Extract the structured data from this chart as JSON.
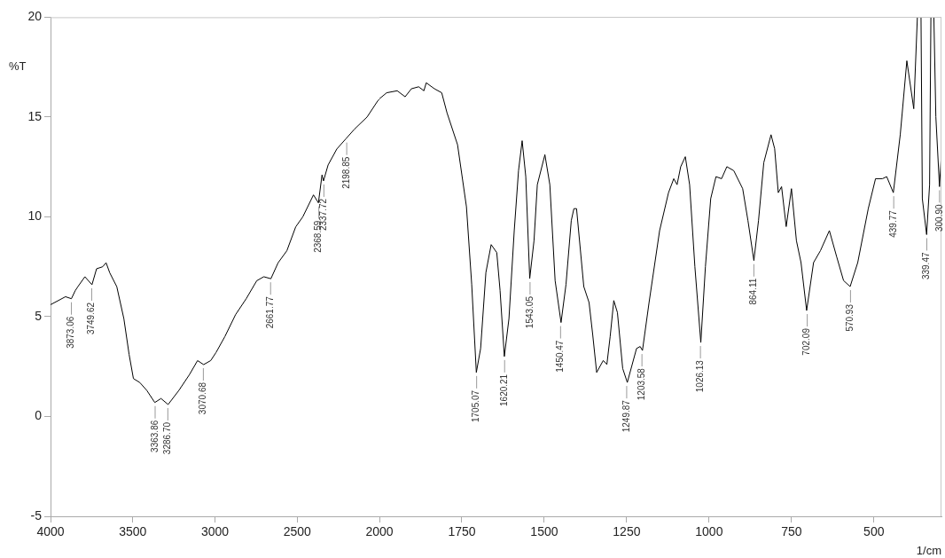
{
  "chart_data": [
    {
      "type": "line",
      "ylabel": "%T",
      "x": [
        4000,
        3909,
        3873,
        3850,
        3834,
        3791,
        3748,
        3720,
        3683,
        3662,
        3640,
        3597,
        3554,
        3522,
        3496,
        3457,
        3414,
        3366,
        3328,
        3285,
        3220,
        3155,
        3106,
        3069,
        3026,
        2994,
        2940,
        2875,
        2810,
        2746,
        2703,
        2660,
        2616,
        2563,
        2509,
        2466,
        2401,
        2371,
        2349,
        2340,
        2312,
        2259,
        2205,
        2151,
        2075,
        2011,
        2000
      ],
      "values": [
        5.6,
        6.0,
        5.9,
        6.3,
        6.5,
        7.0,
        6.6,
        7.4,
        7.5,
        7.7,
        7.2,
        6.5,
        4.9,
        3.1,
        1.9,
        1.7,
        1.3,
        0.7,
        0.9,
        0.6,
        1.3,
        2.1,
        2.8,
        2.6,
        2.8,
        3.2,
        4.0,
        5.1,
        5.9,
        6.8,
        7.0,
        6.9,
        7.7,
        8.3,
        9.5,
        10.0,
        11.1,
        10.7,
        12.1,
        11.8,
        12.6,
        13.4,
        13.9,
        14.4,
        15.0,
        15.8,
        15.9
      ],
      "color": "#000000",
      "marker": "none",
      "line_style": "solid",
      "grid": false,
      "legend": false,
      "xlim": [
        4000,
        2000
      ],
      "xticks": [
        4000,
        3500,
        3000,
        2500
      ],
      "ylim": [
        -5,
        20
      ],
      "yticks": [
        -5,
        0,
        5,
        10,
        15,
        20
      ],
      "annotations": [
        {
          "text": "3873.06",
          "x": 3873.06,
          "y": 5.9
        },
        {
          "text": "3749.62",
          "x": 3749.62,
          "y": 6.6
        },
        {
          "text": "3363.86",
          "x": 3363.86,
          "y": 0.7
        },
        {
          "text": "3286.70",
          "x": 3286.7,
          "y": 0.6
        },
        {
          "text": "3070.68",
          "x": 3070.68,
          "y": 2.6
        },
        {
          "text": "2661.77",
          "x": 2661.77,
          "y": 6.9
        },
        {
          "text": "2368.59",
          "x": 2368.59,
          "y": 10.7
        },
        {
          "text": "2337.72",
          "x": 2337.72,
          "y": 11.8
        },
        {
          "text": "2198.85",
          "x": 2198.85,
          "y": 13.9
        }
      ]
    },
    {
      "type": "line",
      "xlabel": "1/cm",
      "tick_labels": "x",
      "x": [
        2000,
        1978,
        1946,
        1922,
        1903,
        1881,
        1865,
        1858,
        1833,
        1811,
        1795,
        1763,
        1736,
        1720,
        1706,
        1693,
        1677,
        1661,
        1644,
        1634,
        1621,
        1607,
        1591,
        1578,
        1567,
        1556,
        1544,
        1531,
        1521,
        1498,
        1483,
        1467,
        1449,
        1434,
        1418,
        1410,
        1402,
        1380,
        1364,
        1353,
        1341,
        1321,
        1310,
        1300,
        1289,
        1278,
        1262,
        1248,
        1220,
        1209,
        1202,
        1182,
        1150,
        1123,
        1107,
        1097,
        1086,
        1072,
        1059,
        1043,
        1025,
        1011,
        995,
        979,
        962,
        946,
        925,
        898,
        882,
        864,
        850,
        834,
        812,
        801,
        790,
        780,
        766,
        750,
        735,
        721,
        704,
        683,
        662,
        635,
        613,
        592,
        572,
        549,
        517,
        495,
        474,
        461,
        441,
        420,
        400,
        379,
        368,
        362,
        357,
        353,
        340,
        331,
        327,
        322,
        318,
        312,
        301,
        295
      ],
      "values": [
        15.9,
        16.2,
        16.3,
        16.0,
        16.4,
        16.5,
        16.3,
        16.7,
        16.4,
        16.2,
        15.2,
        13.6,
        10.5,
        6.6,
        2.2,
        3.4,
        7.2,
        8.6,
        8.2,
        6.3,
        3.0,
        4.9,
        9.3,
        12.3,
        13.8,
        12.0,
        6.9,
        8.8,
        11.6,
        13.1,
        11.6,
        6.8,
        4.7,
        6.6,
        9.8,
        10.4,
        10.4,
        6.5,
        5.7,
        4.1,
        2.2,
        2.8,
        2.6,
        4.0,
        5.8,
        5.2,
        2.4,
        1.7,
        3.4,
        3.5,
        3.3,
        5.7,
        9.3,
        11.2,
        11.9,
        11.6,
        12.5,
        13.0,
        11.6,
        7.5,
        3.7,
        7.5,
        10.9,
        12.0,
        11.9,
        12.5,
        12.3,
        11.4,
        9.8,
        7.8,
        9.8,
        12.7,
        14.1,
        13.4,
        11.2,
        11.5,
        9.5,
        11.4,
        8.8,
        7.7,
        5.3,
        7.7,
        8.3,
        9.3,
        8.0,
        6.8,
        6.5,
        7.7,
        10.4,
        11.9,
        11.9,
        12.0,
        11.2,
        14.1,
        17.8,
        15.4,
        20,
        null,
        20,
        10.9,
        9.1,
        11.6,
        20,
        null,
        20,
        15.0,
        11.5,
        13.2
      ],
      "color": "#000000",
      "marker": "none",
      "line_style": "solid",
      "grid": false,
      "legend": false,
      "xlim": [
        2000,
        295
      ],
      "xticks": [
        2000,
        1750,
        1500,
        1250,
        1000,
        750,
        500
      ],
      "ylim": [
        -5,
        20
      ],
      "yticks": [
        -5,
        0,
        5,
        10,
        15,
        20
      ],
      "annotations": [
        {
          "text": "1705.07",
          "x": 1705.07,
          "y": 2.2
        },
        {
          "text": "1620.21",
          "x": 1620.21,
          "y": 3.0
        },
        {
          "text": "1543.05",
          "x": 1543.05,
          "y": 6.9
        },
        {
          "text": "1450.47",
          "x": 1450.47,
          "y": 4.7
        },
        {
          "text": "1249.87",
          "x": 1249.87,
          "y": 1.7
        },
        {
          "text": "1203.58",
          "x": 1203.58,
          "y": 3.3
        },
        {
          "text": "1026.13",
          "x": 1026.13,
          "y": 3.7
        },
        {
          "text": "864.11",
          "x": 864.11,
          "y": 7.8
        },
        {
          "text": "702.09",
          "x": 702.09,
          "y": 5.3
        },
        {
          "text": "570.93",
          "x": 570.93,
          "y": 6.5
        },
        {
          "text": "439.77",
          "x": 439.77,
          "y": 11.2
        },
        {
          "text": "339.47",
          "x": 339.47,
          "y": 9.1
        },
        {
          "text": "300.90",
          "x": 300.9,
          "y": 11.5
        }
      ]
    }
  ]
}
